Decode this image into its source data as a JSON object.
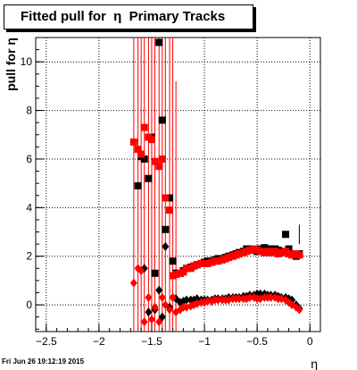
{
  "title": "Fitted pull for  η  Primary Tracks",
  "footer": "Fri Jun 26 19:12:19 2015",
  "colors": {
    "black": "#000000",
    "red": "#ff0000"
  },
  "chart_data": {
    "type": "scatter",
    "xlabel": "η",
    "ylabel": "pull for  η",
    "xlim": [
      -2.6,
      0.1
    ],
    "ylim": [
      -1.1,
      11.0
    ],
    "grid": true,
    "xticks": [
      -2.5,
      -2,
      -1.5,
      -1,
      -0.5,
      0
    ],
    "xtick_labels": [
      "−2.5",
      "−2",
      "−1.5",
      "−1",
      "−0.5",
      "0"
    ],
    "yticks": [
      0,
      2,
      4,
      6,
      8,
      10
    ],
    "ytick_labels": [
      "0",
      "2",
      "4",
      "6",
      "8",
      "10"
    ],
    "series": [
      {
        "color": "black",
        "marker": "square",
        "x": [
          -1.63,
          -1.6,
          -1.57,
          -1.53,
          -1.5,
          -1.47,
          -1.43,
          -1.4,
          -1.37,
          -1.33,
          -1.3,
          -1.27,
          -1.23,
          -1.2,
          -1.17,
          -1.13,
          -1.1,
          -1.07,
          -1.03,
          -1.0,
          -0.97,
          -0.93,
          -0.9,
          -0.87,
          -0.83,
          -0.8,
          -0.77,
          -0.73,
          -0.7,
          -0.67,
          -0.63,
          -0.6,
          -0.57,
          -0.53,
          -0.5,
          -0.47,
          -0.43,
          -0.4,
          -0.37,
          -0.33,
          -0.3,
          -0.27,
          -0.23,
          -0.2,
          -0.17,
          -0.13,
          -0.1
        ],
        "y": [
          4.9,
          6.1,
          6.0,
          5.2,
          6.9,
          1.3,
          10.8,
          7.6,
          3.1,
          4.4,
          1.8,
          1.3,
          1.3,
          1.4,
          1.5,
          1.55,
          1.6,
          1.65,
          1.7,
          1.75,
          1.8,
          1.8,
          1.85,
          1.9,
          1.9,
          1.95,
          2.0,
          2.05,
          2.1,
          2.15,
          2.2,
          2.3,
          2.3,
          2.25,
          2.2,
          2.3,
          2.35,
          2.3,
          2.3,
          2.3,
          2.25,
          2.2,
          2.9,
          2.3,
          2.1,
          2.0,
          2.1
        ],
        "ylo": [
          null,
          null,
          null,
          null,
          null,
          null,
          null,
          null,
          null,
          null,
          null,
          null,
          null,
          null,
          null,
          null,
          null,
          null,
          null,
          null,
          null,
          null,
          null,
          null,
          null,
          null,
          null,
          null,
          null,
          null,
          null,
          null,
          null,
          null,
          null,
          null,
          null,
          null,
          null,
          null,
          null,
          null,
          null,
          null,
          null,
          null,
          2.5
        ],
        "yhi": [
          null,
          null,
          null,
          null,
          null,
          null,
          null,
          null,
          null,
          null,
          null,
          null,
          null,
          null,
          null,
          null,
          null,
          null,
          null,
          null,
          null,
          null,
          null,
          null,
          null,
          null,
          null,
          null,
          null,
          null,
          null,
          null,
          null,
          null,
          null,
          null,
          null,
          null,
          null,
          null,
          null,
          null,
          null,
          null,
          null,
          null,
          3.3
        ]
      },
      {
        "color": "red",
        "marker": "square",
        "x": [
          -1.67,
          -1.63,
          -1.6,
          -1.57,
          -1.53,
          -1.5,
          -1.47,
          -1.43,
          -1.4,
          -1.37,
          -1.33,
          -1.3,
          -1.27,
          -1.23,
          -1.2,
          -1.17,
          -1.13,
          -1.1,
          -1.07,
          -1.03,
          -1.0,
          -0.97,
          -0.93,
          -0.9,
          -0.87,
          -0.83,
          -0.8,
          -0.77,
          -0.73,
          -0.7,
          -0.67,
          -0.63,
          -0.6,
          -0.57,
          -0.53,
          -0.5,
          -0.47,
          -0.43,
          -0.4,
          -0.37,
          -0.33,
          -0.3,
          -0.27,
          -0.23,
          -0.2,
          -0.17,
          -0.13,
          -0.1
        ],
        "y": [
          6.7,
          6.4,
          6.2,
          7.3,
          6.9,
          6.8,
          5.9,
          5.7,
          6.0,
          4.4,
          3.9,
          1.2,
          1.25,
          1.3,
          1.35,
          1.5,
          1.5,
          1.6,
          1.65,
          1.7,
          1.7,
          1.7,
          1.75,
          1.8,
          1.8,
          1.85,
          1.9,
          1.95,
          2.0,
          2.05,
          2.1,
          2.15,
          2.2,
          2.25,
          2.3,
          2.25,
          2.2,
          2.15,
          2.2,
          2.15,
          2.2,
          2.1,
          2.15,
          2.2,
          2.1,
          2.05,
          2.1,
          2.05
        ]
      },
      {
        "color": "black",
        "marker": "diamond",
        "x": [
          -1.57,
          -1.53,
          -1.47,
          -1.43,
          -1.4,
          -1.37,
          -1.33,
          -1.3,
          -1.27,
          -1.23,
          -1.2,
          -1.17,
          -1.13,
          -1.1,
          -1.07,
          -1.03,
          -1.0,
          -0.97,
          -0.93,
          -0.9,
          -0.87,
          -0.83,
          -0.8,
          -0.77,
          -0.73,
          -0.7,
          -0.67,
          -0.63,
          -0.6,
          -0.57,
          -0.53,
          -0.5,
          -0.47,
          -0.43,
          -0.4,
          -0.37,
          -0.33,
          -0.3,
          -0.27,
          -0.23,
          -0.2,
          -0.17,
          -0.13,
          -0.1
        ],
        "y": [
          1.5,
          -0.3,
          -0.2,
          0.6,
          -0.5,
          2.4,
          -0.1,
          0.3,
          0.25,
          0.1,
          0.15,
          0.2,
          0.2,
          0.2,
          0.25,
          0.2,
          0.2,
          0.2,
          0.2,
          0.25,
          0.25,
          0.25,
          0.25,
          0.3,
          0.3,
          0.3,
          0.3,
          0.35,
          0.35,
          0.4,
          0.4,
          0.45,
          0.45,
          0.45,
          0.4,
          0.4,
          0.4,
          0.35,
          0.3,
          0.3,
          0.25,
          0.2,
          0.0,
          -0.15
        ]
      },
      {
        "color": "red",
        "marker": "diamond",
        "x": [
          -1.67,
          -1.63,
          -1.6,
          -1.57,
          -1.53,
          -1.5,
          -1.47,
          -1.43,
          -1.4,
          -1.37,
          -1.33,
          -1.3,
          -1.27,
          -1.23,
          -1.2,
          -1.17,
          -1.13,
          -1.1,
          -1.07,
          -1.03,
          -1.0,
          -0.97,
          -0.93,
          -0.9,
          -0.87,
          -0.83,
          -0.8,
          -0.77,
          -0.73,
          -0.7,
          -0.67,
          -0.63,
          -0.6,
          -0.57,
          -0.53,
          -0.5,
          -0.47,
          -0.43,
          -0.4,
          -0.37,
          -0.33,
          -0.3,
          -0.27,
          -0.23,
          -0.2,
          -0.17,
          -0.13,
          -0.1
        ],
        "y": [
          0.9,
          1.5,
          1.4,
          -0.7,
          0.3,
          -0.6,
          -0.1,
          -0.7,
          0.3,
          0.0,
          -0.2,
          0.3,
          -0.3,
          -0.2,
          -0.1,
          -0.1,
          -0.05,
          0.0,
          0.05,
          0.1,
          0.1,
          0.15,
          0.15,
          0.2,
          0.2,
          0.2,
          0.2,
          0.2,
          0.25,
          0.25,
          0.25,
          0.25,
          0.25,
          0.3,
          0.3,
          0.25,
          0.25,
          0.3,
          0.3,
          0.3,
          0.3,
          0.25,
          0.25,
          0.2,
          0.1,
          0.0,
          -0.1,
          -0.2
        ],
        "ylo": [
          -1.1,
          -1.1,
          -1.1,
          -1.1,
          -1.1,
          -1.1,
          -1.1,
          -1.1,
          -1.1,
          -1.1,
          -1.1,
          -1.1,
          -1.1,
          null,
          null,
          null,
          null,
          null,
          null,
          null,
          null,
          null,
          null,
          null,
          null,
          null,
          null,
          null,
          null,
          null,
          null,
          null,
          null,
          null,
          null,
          null,
          null,
          null,
          null,
          null,
          null,
          null,
          null,
          null,
          null,
          null,
          null,
          null
        ],
        "yhi": [
          11.0,
          11.0,
          11.0,
          11.0,
          11.0,
          11.0,
          11.0,
          11.0,
          11.0,
          11.0,
          11.0,
          11.0,
          9.2,
          null,
          null,
          null,
          null,
          null,
          null,
          null,
          null,
          null,
          null,
          null,
          null,
          null,
          null,
          null,
          null,
          null,
          null,
          null,
          null,
          null,
          null,
          null,
          null,
          null,
          null,
          null,
          null,
          null,
          null,
          null,
          null,
          null,
          null,
          null
        ]
      }
    ]
  }
}
